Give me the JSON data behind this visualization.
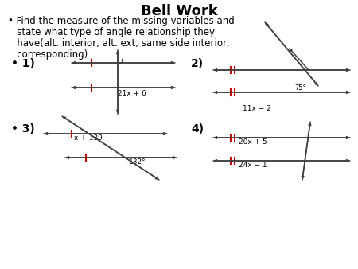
{
  "title": "Bell Work",
  "bg_color": "#ffffff",
  "line_color": "#404040",
  "tick_color": "#cc0000",
  "label1": "21x + 6",
  "label2_top": "75°",
  "label2_bot": "11x − 2",
  "label3_top": "x + 139",
  "label3_bot": "132°",
  "label4_top": "20x + 5",
  "label4_bot": "24x − 1",
  "bullet_lines": [
    "• Find the measure of the missing variables and",
    "   state what type of angle relationship they",
    "   have(alt. interior, alt. ext, same side interior,",
    "   corresponding)."
  ]
}
